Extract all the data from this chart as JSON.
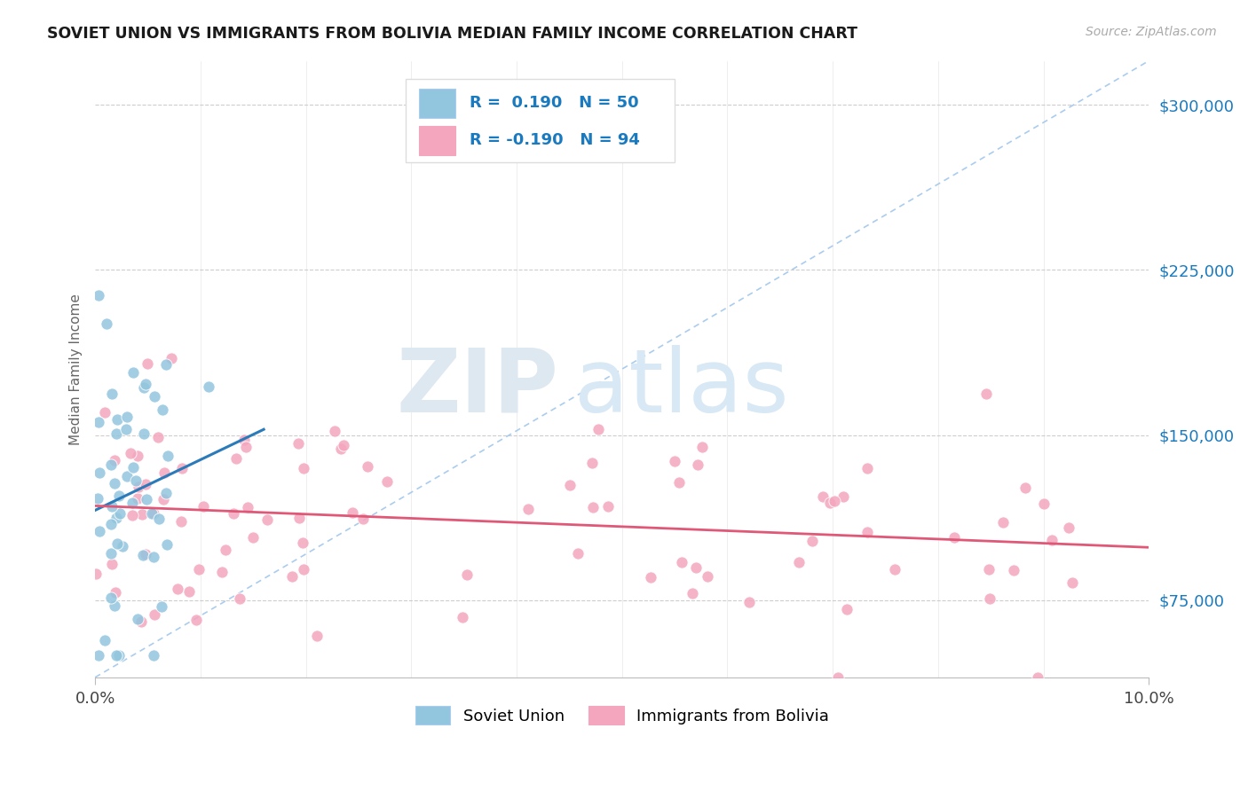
{
  "title": "SOVIET UNION VS IMMIGRANTS FROM BOLIVIA MEDIAN FAMILY INCOME CORRELATION CHART",
  "source": "Source: ZipAtlas.com",
  "ylabel": "Median Family Income",
  "xlim": [
    0.0,
    10.0
  ],
  "ylim": [
    40000,
    320000
  ],
  "yticks": [
    75000,
    150000,
    225000,
    300000
  ],
  "ytick_labels": [
    "$75,000",
    "$150,000",
    "$225,000",
    "$300,000"
  ],
  "xtick_labels": [
    "0.0%",
    "10.0%"
  ],
  "background_color": "#ffffff",
  "grid_color": "#c8c8c8",
  "soviet_color": "#92c5de",
  "bolivia_color": "#f4a6be",
  "soviet_line_color": "#2b7bba",
  "bolivia_line_color": "#e05878",
  "diagonal_line_color": "#aaccee",
  "r_soviet": 0.19,
  "n_soviet": 50,
  "r_bolivia": -0.19,
  "n_bolivia": 94,
  "legend_text_color": "#1a7abf",
  "legend_label_color": "#222222",
  "axis_tick_color": "#1a7abf",
  "title_color": "#1a1a1a",
  "watermark_zip_color": "#dde8f0",
  "watermark_atlas_color": "#d8e8f5"
}
